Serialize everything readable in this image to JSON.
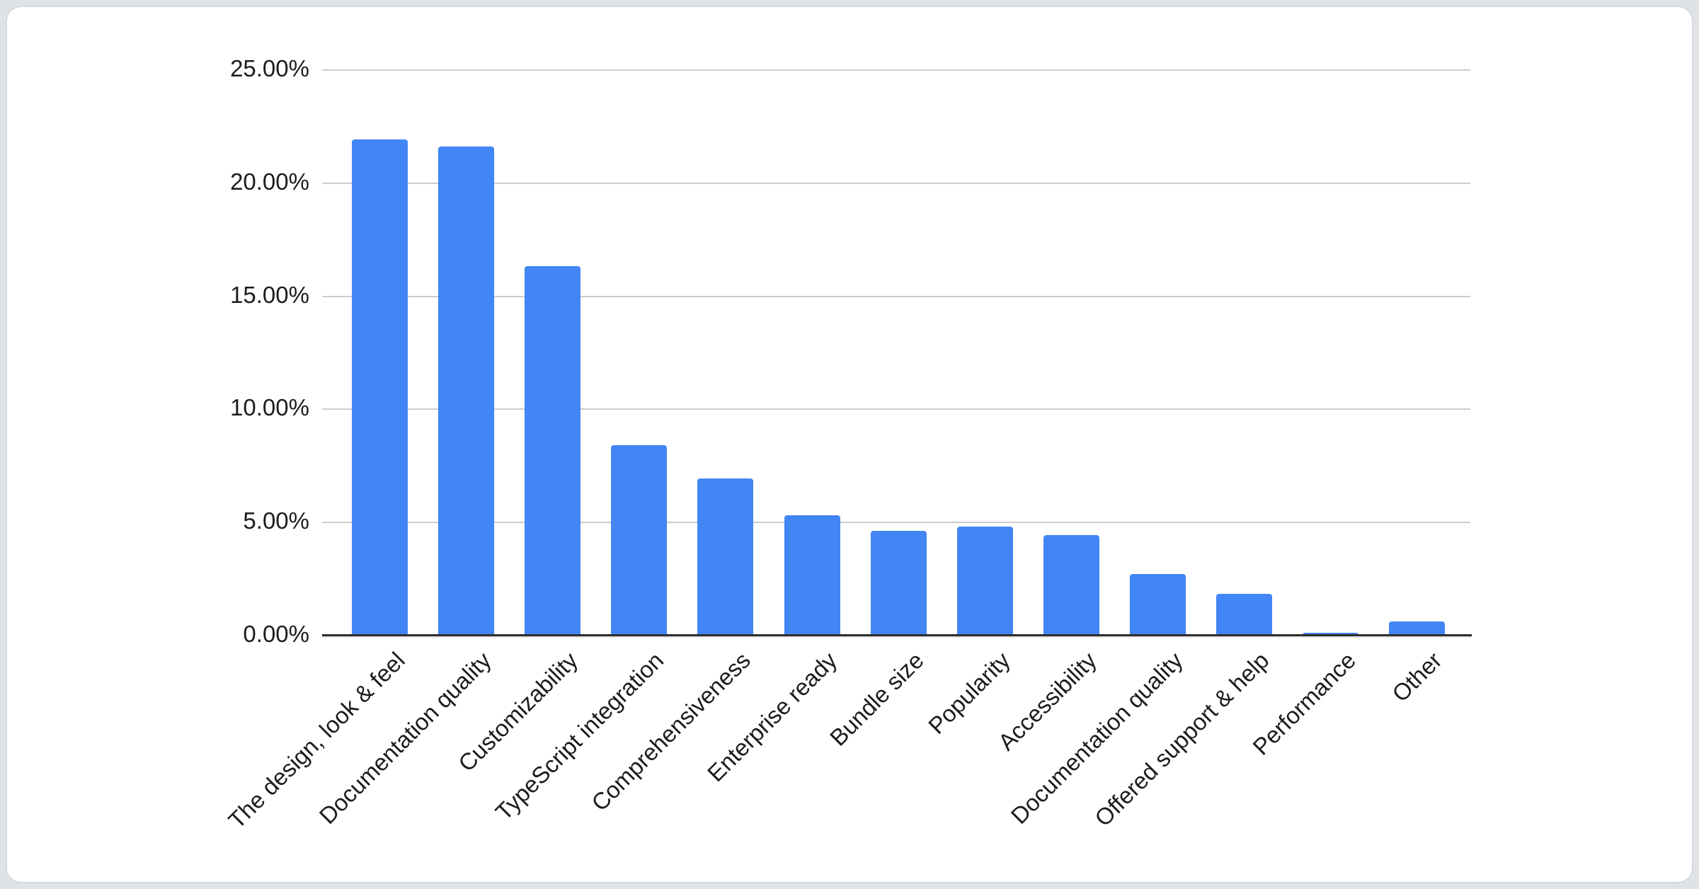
{
  "chart_data": {
    "type": "bar",
    "categories": [
      "The design, look & feel",
      "Documentation quality",
      "Customizability",
      "TypeScript integration",
      "Comprehensiveness",
      "Enterprise ready",
      "Bundle size",
      "Popularity",
      "Accessibility",
      "Documentation quality",
      "Offered support & help",
      "Performance",
      "Other"
    ],
    "values": [
      21.9,
      21.6,
      16.3,
      8.4,
      6.9,
      5.3,
      4.6,
      4.8,
      4.4,
      2.7,
      1.8,
      0.1,
      0.6
    ],
    "value_unit": "%",
    "title": "",
    "xlabel": "",
    "ylabel": "",
    "ylim": [
      0,
      25
    ],
    "y_ticks": [
      {
        "value": 25,
        "label": "25.00%"
      },
      {
        "value": 20,
        "label": "20.00%"
      },
      {
        "value": 15,
        "label": "15.00%"
      },
      {
        "value": 10,
        "label": "10.00%"
      },
      {
        "value": 5,
        "label": "5.00%"
      },
      {
        "value": 0,
        "label": "0.00%"
      }
    ],
    "grid": true,
    "legend_position": "none",
    "bar_color": "#4285f4",
    "gridline_color": "#cccccc",
    "axis_line_color": "#2e2e2e",
    "label_color": "#1c1c1c",
    "card_background": "#ffffff",
    "page_background": "#dfe2e6"
  }
}
